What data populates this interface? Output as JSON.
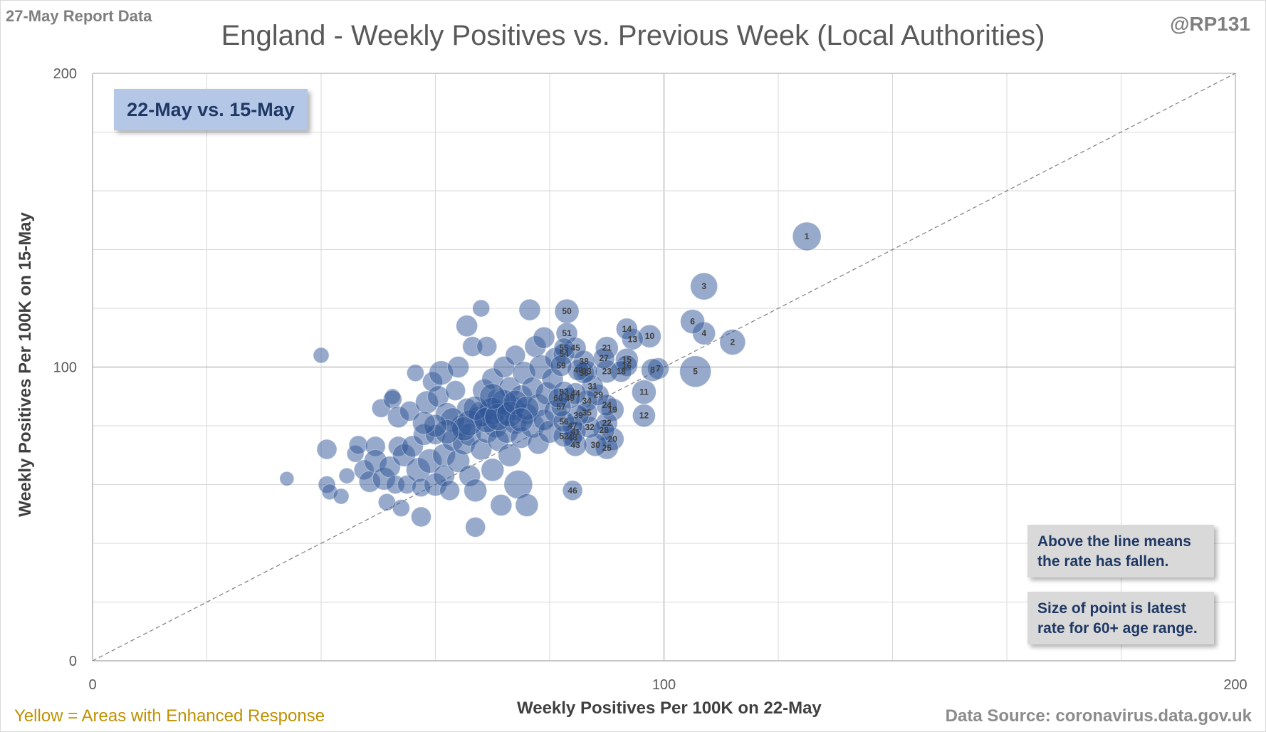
{
  "header": {
    "report_date": "27-May Report Data",
    "handle": "@RP131"
  },
  "footer": {
    "legend_note": "Yellow = Areas with Enhanced  Response",
    "source": "Data Source: coronavirus.data.gov.uk"
  },
  "annotations": {
    "period": "22-May vs. 15-May",
    "note_line": "Above the line means the rate has fallen.",
    "note_size": "Size of point is latest rate for 60+ age range."
  },
  "colors": {
    "bubble": "#2f5597",
    "grid": "#d9d9d9",
    "diagonal": "#7f7f7f"
  },
  "chart_data": {
    "type": "scatter",
    "title": "England - Weekly Positives vs. Previous Week (Local Authorities)",
    "xlabel": "Weekly Positives Per 100K on 22-May",
    "ylabel": "Weekly Positives Per 100K on 15-May",
    "xlim": [
      0,
      200
    ],
    "ylim": [
      0,
      200
    ],
    "x_ticks": [
      "0",
      "100",
      "200"
    ],
    "y_ticks": [
      "0",
      "100",
      "200"
    ],
    "grid": true,
    "reference_line": "y = x",
    "labeled_points": [
      {
        "label": "1",
        "x": 125,
        "y": 144.5,
        "size": 20
      },
      {
        "label": "2",
        "x": 112,
        "y": 108.5,
        "size": 18
      },
      {
        "label": "3",
        "x": 107,
        "y": 127.5,
        "size": 19
      },
      {
        "label": "4",
        "x": 107,
        "y": 111.5,
        "size": 16
      },
      {
        "label": "5",
        "x": 105.5,
        "y": 98.5,
        "size": 22
      },
      {
        "label": "6",
        "x": 105,
        "y": 115.5,
        "size": 17
      },
      {
        "label": "7",
        "x": 99,
        "y": 99.5,
        "size": 15
      },
      {
        "label": "8",
        "x": 98,
        "y": 99.0,
        "size": 16
      },
      {
        "label": "10",
        "x": 97.5,
        "y": 110.5,
        "size": 16
      },
      {
        "label": "11",
        "x": 96.5,
        "y": 91.5,
        "size": 17
      },
      {
        "label": "12",
        "x": 96.5,
        "y": 83.5,
        "size": 16
      },
      {
        "label": "13",
        "x": 94.5,
        "y": 109.5,
        "size": 15
      },
      {
        "label": "14",
        "x": 93.5,
        "y": 113.0,
        "size": 15
      },
      {
        "label": "15",
        "x": 93.5,
        "y": 102.5,
        "size": 16
      },
      {
        "label": "16",
        "x": 93.5,
        "y": 100.5,
        "size": 15
      },
      {
        "label": "18",
        "x": 92.5,
        "y": 98.5,
        "size": 15
      },
      {
        "label": "19",
        "x": 91,
        "y": 85.5,
        "size": 16
      },
      {
        "label": "20",
        "x": 91,
        "y": 75.5,
        "size": 16
      },
      {
        "label": "21",
        "x": 90,
        "y": 106.5,
        "size": 16
      },
      {
        "label": "22",
        "x": 90,
        "y": 81.0,
        "size": 15
      },
      {
        "label": "23",
        "x": 90,
        "y": 98.5,
        "size": 16
      },
      {
        "label": "24",
        "x": 90,
        "y": 87.0,
        "size": 15
      },
      {
        "label": "25",
        "x": 90,
        "y": 72.5,
        "size": 16
      },
      {
        "label": "27",
        "x": 89.5,
        "y": 103.0,
        "size": 15
      },
      {
        "label": "28",
        "x": 89.5,
        "y": 78.5,
        "size": 15
      },
      {
        "label": "29",
        "x": 88.5,
        "y": 90.5,
        "size": 15
      },
      {
        "label": "30",
        "x": 88,
        "y": 73.5,
        "size": 16
      },
      {
        "label": "31",
        "x": 87.5,
        "y": 93.5,
        "size": 15
      },
      {
        "label": "32",
        "x": 87,
        "y": 79.5,
        "size": 15
      },
      {
        "label": "33",
        "x": 86.5,
        "y": 98.5,
        "size": 15
      },
      {
        "label": "34",
        "x": 86.5,
        "y": 88.5,
        "size": 15
      },
      {
        "label": "35",
        "x": 86.5,
        "y": 84.5,
        "size": 15
      },
      {
        "label": "36",
        "x": 86,
        "y": 98.0,
        "size": 15
      },
      {
        "label": "38",
        "x": 86,
        "y": 102.0,
        "size": 15
      },
      {
        "label": "39",
        "x": 85,
        "y": 83.5,
        "size": 15
      },
      {
        "label": "40",
        "x": 85,
        "y": 99.0,
        "size": 15
      },
      {
        "label": "41",
        "x": 84.5,
        "y": 78.0,
        "size": 15
      },
      {
        "label": "43",
        "x": 84.5,
        "y": 73.5,
        "size": 16
      },
      {
        "label": "44",
        "x": 84.5,
        "y": 91.0,
        "size": 15
      },
      {
        "label": "45",
        "x": 84.5,
        "y": 106.5,
        "size": 15
      },
      {
        "label": "46",
        "x": 84,
        "y": 58.0,
        "size": 14
      },
      {
        "label": "47",
        "x": 84,
        "y": 80.0,
        "size": 14
      },
      {
        "label": "48",
        "x": 84,
        "y": 76.0,
        "size": 14
      },
      {
        "label": "49",
        "x": 83.5,
        "y": 89.5,
        "size": 15
      },
      {
        "label": "50",
        "x": 83,
        "y": 119.0,
        "size": 17
      },
      {
        "label": "51",
        "x": 83,
        "y": 111.5,
        "size": 15
      },
      {
        "label": "52",
        "x": 82.5,
        "y": 76.5,
        "size": 15
      },
      {
        "label": "53",
        "x": 82.5,
        "y": 91.5,
        "size": 15
      },
      {
        "label": "54",
        "x": 82.5,
        "y": 104.5,
        "size": 15
      },
      {
        "label": "55",
        "x": 82.5,
        "y": 106.5,
        "size": 14
      },
      {
        "label": "56",
        "x": 82.5,
        "y": 81.5,
        "size": 15
      },
      {
        "label": "57",
        "x": 82,
        "y": 86.5,
        "size": 14
      },
      {
        "label": "59",
        "x": 82,
        "y": 100.5,
        "size": 15
      },
      {
        "label": "60",
        "x": 81.5,
        "y": 89.5,
        "size": 14
      }
    ],
    "unlabeled_points": [
      {
        "x": 34,
        "y": 62,
        "size": 10
      },
      {
        "x": 40,
        "y": 104,
        "size": 11
      },
      {
        "x": 41,
        "y": 72,
        "size": 14
      },
      {
        "x": 41,
        "y": 60,
        "size": 12
      },
      {
        "x": 41.5,
        "y": 57.5,
        "size": 11
      },
      {
        "x": 43.5,
        "y": 56,
        "size": 11
      },
      {
        "x": 44.5,
        "y": 63,
        "size": 11
      },
      {
        "x": 46,
        "y": 70.5,
        "size": 12
      },
      {
        "x": 46.5,
        "y": 73.5,
        "size": 13
      },
      {
        "x": 47.5,
        "y": 65,
        "size": 14
      },
      {
        "x": 48.5,
        "y": 61,
        "size": 15
      },
      {
        "x": 49.5,
        "y": 73,
        "size": 14
      },
      {
        "x": 49.5,
        "y": 68,
        "size": 16
      },
      {
        "x": 50.5,
        "y": 86,
        "size": 13
      },
      {
        "x": 51,
        "y": 62,
        "size": 16
      },
      {
        "x": 51.5,
        "y": 54,
        "size": 12
      },
      {
        "x": 52,
        "y": 66,
        "size": 15
      },
      {
        "x": 52.5,
        "y": 90,
        "size": 11
      },
      {
        "x": 52.5,
        "y": 89,
        "size": 13
      },
      {
        "x": 53,
        "y": 60,
        "size": 13
      },
      {
        "x": 53.5,
        "y": 73,
        "size": 14
      },
      {
        "x": 53.5,
        "y": 83,
        "size": 15
      },
      {
        "x": 54,
        "y": 52,
        "size": 12
      },
      {
        "x": 54.5,
        "y": 70,
        "size": 16
      },
      {
        "x": 55,
        "y": 60,
        "size": 13
      },
      {
        "x": 55.5,
        "y": 85,
        "size": 14
      },
      {
        "x": 56,
        "y": 73,
        "size": 15
      },
      {
        "x": 56.5,
        "y": 98,
        "size": 12
      },
      {
        "x": 57,
        "y": 65,
        "size": 17
      },
      {
        "x": 57.5,
        "y": 49,
        "size": 14
      },
      {
        "x": 57.5,
        "y": 59,
        "size": 13
      },
      {
        "x": 58,
        "y": 77,
        "size": 15
      },
      {
        "x": 58.5,
        "y": 88,
        "size": 16
      },
      {
        "x": 59,
        "y": 68,
        "size": 17
      },
      {
        "x": 59.5,
        "y": 95,
        "size": 14
      },
      {
        "x": 60,
        "y": 60,
        "size": 16
      },
      {
        "x": 60,
        "y": 77,
        "size": 14
      },
      {
        "x": 60.5,
        "y": 90,
        "size": 15
      },
      {
        "x": 61,
        "y": 98,
        "size": 17
      },
      {
        "x": 61.5,
        "y": 70,
        "size": 16
      },
      {
        "x": 61.5,
        "y": 63,
        "size": 15
      },
      {
        "x": 62,
        "y": 84,
        "size": 16
      },
      {
        "x": 62.5,
        "y": 58,
        "size": 14
      },
      {
        "x": 63,
        "y": 75,
        "size": 15
      },
      {
        "x": 63.5,
        "y": 92,
        "size": 14
      },
      {
        "x": 64,
        "y": 100,
        "size": 15
      },
      {
        "x": 64,
        "y": 68,
        "size": 16
      },
      {
        "x": 64.5,
        "y": 80,
        "size": 15
      },
      {
        "x": 65,
        "y": 74,
        "size": 16
      },
      {
        "x": 65.5,
        "y": 114,
        "size": 15
      },
      {
        "x": 65.5,
        "y": 86,
        "size": 14
      },
      {
        "x": 66,
        "y": 63,
        "size": 15
      },
      {
        "x": 66,
        "y": 77,
        "size": 16
      },
      {
        "x": 66.5,
        "y": 107,
        "size": 14
      },
      {
        "x": 67,
        "y": 45.5,
        "size": 14
      },
      {
        "x": 67,
        "y": 58,
        "size": 16
      },
      {
        "x": 67.5,
        "y": 83,
        "size": 15
      },
      {
        "x": 68,
        "y": 120,
        "size": 12
      },
      {
        "x": 68,
        "y": 72,
        "size": 15
      },
      {
        "x": 68.5,
        "y": 92,
        "size": 16
      },
      {
        "x": 69,
        "y": 107,
        "size": 14
      },
      {
        "x": 69,
        "y": 78,
        "size": 16
      },
      {
        "x": 69.5,
        "y": 86,
        "size": 15
      },
      {
        "x": 70,
        "y": 65,
        "size": 16
      },
      {
        "x": 70,
        "y": 96,
        "size": 15
      },
      {
        "x": 70.5,
        "y": 80,
        "size": 17
      },
      {
        "x": 71,
        "y": 75,
        "size": 15
      },
      {
        "x": 71,
        "y": 89,
        "size": 16
      },
      {
        "x": 71.5,
        "y": 53,
        "size": 15
      },
      {
        "x": 72,
        "y": 84,
        "size": 16
      },
      {
        "x": 72,
        "y": 100,
        "size": 15
      },
      {
        "x": 72.5,
        "y": 78,
        "size": 16
      },
      {
        "x": 73,
        "y": 93,
        "size": 15
      },
      {
        "x": 73,
        "y": 70,
        "size": 16
      },
      {
        "x": 73.5,
        "y": 86,
        "size": 17
      },
      {
        "x": 74,
        "y": 104,
        "size": 14
      },
      {
        "x": 74,
        "y": 81,
        "size": 16
      },
      {
        "x": 74.5,
        "y": 60,
        "size": 20
      },
      {
        "x": 75,
        "y": 90,
        "size": 16
      },
      {
        "x": 75,
        "y": 76,
        "size": 15
      },
      {
        "x": 75.5,
        "y": 98,
        "size": 16
      },
      {
        "x": 76,
        "y": 84,
        "size": 15
      },
      {
        "x": 76,
        "y": 53,
        "size": 16
      },
      {
        "x": 76.5,
        "y": 119.5,
        "size": 15
      },
      {
        "x": 77,
        "y": 80,
        "size": 17
      },
      {
        "x": 77,
        "y": 93,
        "size": 15
      },
      {
        "x": 77.5,
        "y": 107,
        "size": 15
      },
      {
        "x": 78,
        "y": 87,
        "size": 16
      },
      {
        "x": 78,
        "y": 74,
        "size": 15
      },
      {
        "x": 78.5,
        "y": 100,
        "size": 17
      },
      {
        "x": 79,
        "y": 82,
        "size": 15
      },
      {
        "x": 79,
        "y": 110,
        "size": 15
      },
      {
        "x": 79.5,
        "y": 91,
        "size": 16
      },
      {
        "x": 80,
        "y": 78,
        "size": 16
      },
      {
        "x": 80.5,
        "y": 96,
        "size": 15
      },
      {
        "x": 81,
        "y": 85,
        "size": 16
      },
      {
        "x": 81,
        "y": 103,
        "size": 15
      },
      {
        "x": 63,
        "y": 82,
        "size": 17
      },
      {
        "x": 66,
        "y": 81,
        "size": 18
      },
      {
        "x": 68,
        "y": 84,
        "size": 18
      },
      {
        "x": 70,
        "y": 85,
        "size": 19
      },
      {
        "x": 72,
        "y": 88,
        "size": 18
      },
      {
        "x": 67,
        "y": 86,
        "size": 17
      },
      {
        "x": 69,
        "y": 82,
        "size": 18
      },
      {
        "x": 71,
        "y": 83,
        "size": 19
      },
      {
        "x": 73,
        "y": 84,
        "size": 18
      },
      {
        "x": 65,
        "y": 79,
        "size": 17
      },
      {
        "x": 62,
        "y": 78,
        "size": 17
      },
      {
        "x": 70,
        "y": 90,
        "size": 18
      },
      {
        "x": 74,
        "y": 88,
        "size": 17
      },
      {
        "x": 76,
        "y": 86,
        "size": 17
      },
      {
        "x": 60,
        "y": 80,
        "size": 16
      },
      {
        "x": 58,
        "y": 81,
        "size": 16
      },
      {
        "x": 75,
        "y": 82,
        "size": 17
      }
    ]
  }
}
